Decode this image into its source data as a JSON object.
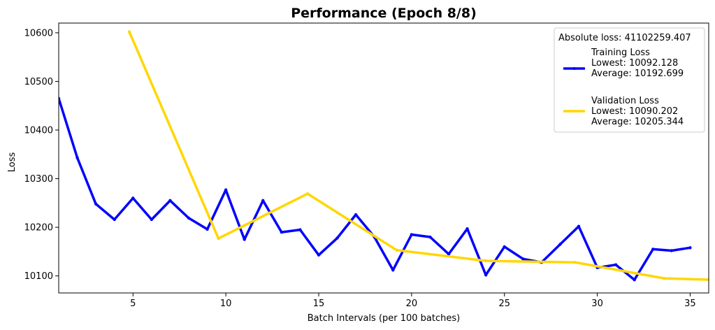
{
  "chart_data": {
    "type": "line",
    "title": "Performance (Epoch 8/8)",
    "xlabel": "Batch Intervals (per 100 batches)",
    "ylabel": "Loss",
    "xlim": [
      1,
      36
    ],
    "ylim": [
      10065,
      10620
    ],
    "x_ticks": [
      5,
      10,
      15,
      20,
      25,
      30,
      35
    ],
    "y_ticks": [
      10100,
      10200,
      10300,
      10400,
      10500,
      10600
    ],
    "grid": false,
    "legend": {
      "placement": "top-right",
      "title": "Absolute loss: 41102259.407",
      "entries": [
        {
          "lines": [
            "Training Loss",
            "Lowest: 10092.128",
            "Average: 10192.699"
          ]
        },
        {
          "lines": [
            "Validation Loss",
            "Lowest: 10090.202",
            "Average: 10205.344"
          ]
        }
      ]
    },
    "series": [
      {
        "name": "Training Loss",
        "color": "#0000ff",
        "x": [
          1,
          2,
          3,
          4,
          5,
          6,
          7,
          8,
          9,
          10,
          11,
          12,
          13,
          14,
          15,
          16,
          17,
          18,
          19,
          20,
          21,
          22,
          23,
          24,
          25,
          26,
          27,
          28,
          29,
          30,
          31,
          32,
          33,
          34,
          35
        ],
        "y": [
          10465,
          10343,
          10248,
          10216,
          10260,
          10216,
          10255,
          10219,
          10196,
          10277,
          10175,
          10255,
          10190,
          10195,
          10143,
          10178,
          10226,
          10180,
          10112,
          10185,
          10180,
          10145,
          10197,
          10102,
          10160,
          10135,
          10128,
          10165,
          10202,
          10117,
          10123,
          10092,
          10155,
          10152,
          10158
        ]
      },
      {
        "name": "Validation Loss",
        "color": "#ffd700",
        "x": [
          4.8,
          9.6,
          14.4,
          19.2,
          24.0,
          28.8,
          33.6,
          36.2
        ],
        "y": [
          10602,
          10177,
          10269,
          10153,
          10131,
          10128,
          10095,
          10092
        ]
      }
    ]
  }
}
